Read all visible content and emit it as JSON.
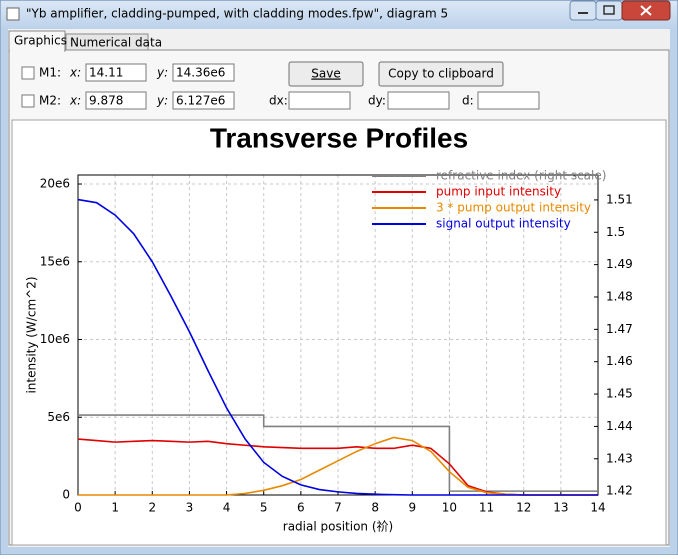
{
  "window": {
    "title": "\"Yb amplifier, cladding-pumped, with cladding modes.fpw\", diagram 5"
  },
  "tabs": [
    "Graphics",
    "Numerical data"
  ],
  "markers": [
    {
      "label": "M1:",
      "x_label": "x:",
      "x": "14.11",
      "y_label": "y:",
      "y": "14.36e6"
    },
    {
      "label": "M2:",
      "x_label": "x:",
      "x": "9.878",
      "y_label": "y:",
      "y": "6.127e6"
    }
  ],
  "deltas": {
    "dx": "dx:",
    "dy": "dy:",
    "d": "d:"
  },
  "buttons": [
    "Save",
    "Copy to clipboard"
  ],
  "chart_data": {
    "type": "line",
    "title": "Transverse Profiles",
    "xlabel": "radial position (祄)",
    "ylabel": "intensity (W/cm^2)",
    "xlim": [
      0,
      14
    ],
    "xticks": [
      0,
      1,
      2,
      3,
      4,
      5,
      6,
      7,
      8,
      9,
      10,
      11,
      12,
      13,
      14
    ],
    "ylim": [
      0,
      20580000
    ],
    "yticks": [
      0,
      {
        "value": 5000000,
        "label": "5e6"
      },
      {
        "value": 10000000,
        "label": "10e6"
      },
      {
        "value": 15000000,
        "label": "15e6"
      },
      {
        "value": 20000000,
        "label": "20e6"
      }
    ],
    "y2lim": [
      1.4188,
      1.5177
    ],
    "y2ticks": [
      1.42,
      1.43,
      1.44,
      1.45,
      1.46,
      1.47,
      1.48,
      1.49,
      1.5,
      1.51
    ],
    "grid": true,
    "legend": "upper right",
    "x": [
      0,
      0.5,
      1,
      1.5,
      2,
      2.5,
      3,
      3.5,
      4,
      4.5,
      5,
      5.5,
      6,
      6.5,
      7,
      7.5,
      8,
      8.5,
      9,
      9.5,
      10,
      10.5,
      11,
      11.5,
      12,
      12.5,
      13,
      13.5,
      14
    ],
    "series": [
      {
        "name": "refractive index (right scale)",
        "color": "#808080",
        "axis": "y2",
        "x": [
          0,
          5,
          5,
          10,
          10,
          14
        ],
        "values": [
          1.4435,
          1.4435,
          1.44,
          1.44,
          1.42,
          1.42
        ]
      },
      {
        "name": "pump input intensity",
        "color": "#e00000",
        "values": [
          3600000,
          3500000,
          3400000,
          3450000,
          3500000,
          3450000,
          3400000,
          3450000,
          3300000,
          3200000,
          3100000,
          3050000,
          3000000,
          3000000,
          3000000,
          3100000,
          3000000,
          3000000,
          3200000,
          3000000,
          2000000,
          600000,
          200000,
          50000,
          0,
          0,
          0,
          0,
          0
        ]
      },
      {
        "name": "3 * pump output intensity",
        "color": "#e88a00",
        "values": [
          0,
          0,
          0,
          0,
          0,
          0,
          0,
          0,
          0,
          100000,
          300000,
          600000,
          1000000,
          1600000,
          2200000,
          2800000,
          3300000,
          3700000,
          3500000,
          2800000,
          1500000,
          500000,
          150000,
          50000,
          0,
          0,
          0,
          0,
          0
        ]
      },
      {
        "name": "signal output intensity",
        "color": "#0000e0",
        "values": [
          19000000,
          18800000,
          18000000,
          16800000,
          15000000,
          12800000,
          10500000,
          8000000,
          5600000,
          3600000,
          2100000,
          1200000,
          650000,
          350000,
          200000,
          100000,
          50000,
          20000,
          0,
          0,
          0,
          0,
          0,
          0,
          0,
          0,
          0,
          0,
          0
        ]
      }
    ]
  }
}
